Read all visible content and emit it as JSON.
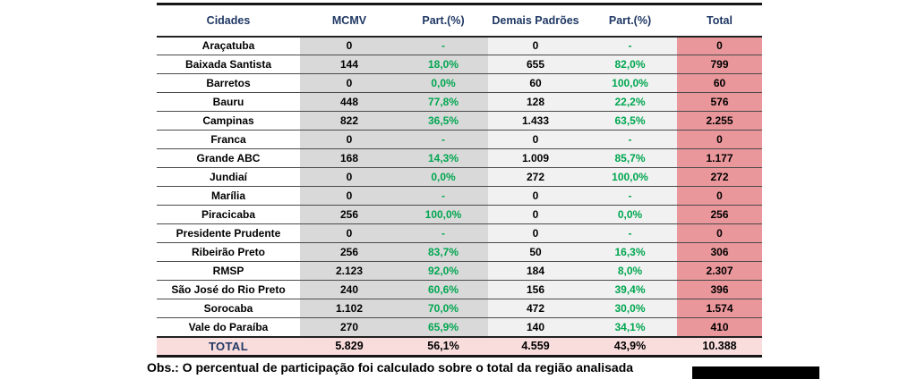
{
  "colors": {
    "navy": "#1f3864",
    "green": "#00a650",
    "gray_dark": "#d9d9d9",
    "gray_light": "#f1f1f1",
    "salmon": "#ea979b",
    "total_pink": "#f9dcdc"
  },
  "footnote": "Obs.: O percentual de participação foi calculado sobre o total da região analisada",
  "chart_data": {
    "type": "table",
    "columns": [
      "Cidades",
      "MCMV",
      "Part.(%)",
      "Demais Padrões",
      "Part.(%)",
      "Total"
    ],
    "rows": [
      [
        "Araçatuba",
        "0",
        "-",
        "0",
        "-",
        "0"
      ],
      [
        "Baixada Santista",
        "144",
        "18,0%",
        "655",
        "82,0%",
        "799"
      ],
      [
        "Barretos",
        "0",
        "0,0%",
        "60",
        "100,0%",
        "60"
      ],
      [
        "Bauru",
        "448",
        "77,8%",
        "128",
        "22,2%",
        "576"
      ],
      [
        "Campinas",
        "822",
        "36,5%",
        "1.433",
        "63,5%",
        "2.255"
      ],
      [
        "Franca",
        "0",
        "-",
        "0",
        "-",
        "0"
      ],
      [
        "Grande ABC",
        "168",
        "14,3%",
        "1.009",
        "85,7%",
        "1.177"
      ],
      [
        "Jundiaí",
        "0",
        "0,0%",
        "272",
        "100,0%",
        "272"
      ],
      [
        "Marília",
        "0",
        "-",
        "0",
        "-",
        "0"
      ],
      [
        "Piracicaba",
        "256",
        "100,0%",
        "0",
        "0,0%",
        "256"
      ],
      [
        "Presidente Prudente",
        "0",
        "-",
        "0",
        "-",
        "0"
      ],
      [
        "Ribeirão Preto",
        "256",
        "83,7%",
        "50",
        "16,3%",
        "306"
      ],
      [
        "RMSP",
        "2.123",
        "92,0%",
        "184",
        "8,0%",
        "2.307"
      ],
      [
        "São José do Rio Preto",
        "240",
        "60,6%",
        "156",
        "39,4%",
        "396"
      ],
      [
        "Sorocaba",
        "1.102",
        "70,0%",
        "472",
        "30,0%",
        "1.574"
      ],
      [
        "Vale do Paraíba",
        "270",
        "65,9%",
        "140",
        "34,1%",
        "410"
      ]
    ],
    "total_row": [
      "TOTAL",
      "5.829",
      "56,1%",
      "4.559",
      "43,9%",
      "10.388"
    ]
  }
}
